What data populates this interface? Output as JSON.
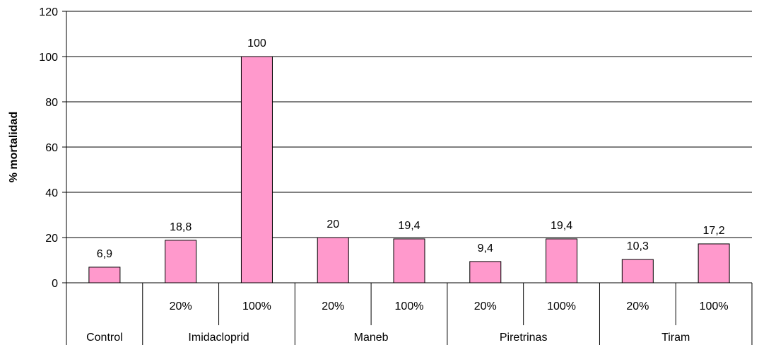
{
  "chart_data": {
    "type": "bar",
    "ylabel": "% mortalidad",
    "xlabel": "",
    "title": "",
    "ylim": [
      0,
      120
    ],
    "yticks": [
      0,
      20,
      40,
      60,
      80,
      100,
      120
    ],
    "grid": true,
    "legend": "none",
    "bar_color": "#ff99cc",
    "bar_edge_color": "#000000",
    "categories": [
      {
        "group": "Control",
        "sub": "",
        "label": "6,9",
        "value": 6.9
      },
      {
        "group": "Imidacloprid",
        "sub": "20%",
        "label": "18,8",
        "value": 18.8
      },
      {
        "group": "Imidacloprid",
        "sub": "100%",
        "label": "100",
        "value": 100
      },
      {
        "group": "Maneb",
        "sub": "20%",
        "label": "20",
        "value": 20
      },
      {
        "group": "Maneb",
        "sub": "100%",
        "label": "19,4",
        "value": 19.4
      },
      {
        "group": "Piretrinas",
        "sub": "20%",
        "label": "9,4",
        "value": 9.4
      },
      {
        "group": "Piretrinas",
        "sub": "100%",
        "label": "19,4",
        "value": 19.4
      },
      {
        "group": "Tiram",
        "sub": "20%",
        "label": "10,3",
        "value": 10.3
      },
      {
        "group": "Tiram",
        "sub": "100%",
        "label": "17,2",
        "value": 17.2
      }
    ],
    "groups": [
      "Control",
      "Imidacloprid",
      "Maneb",
      "Piretrinas",
      "Tiram"
    ]
  }
}
